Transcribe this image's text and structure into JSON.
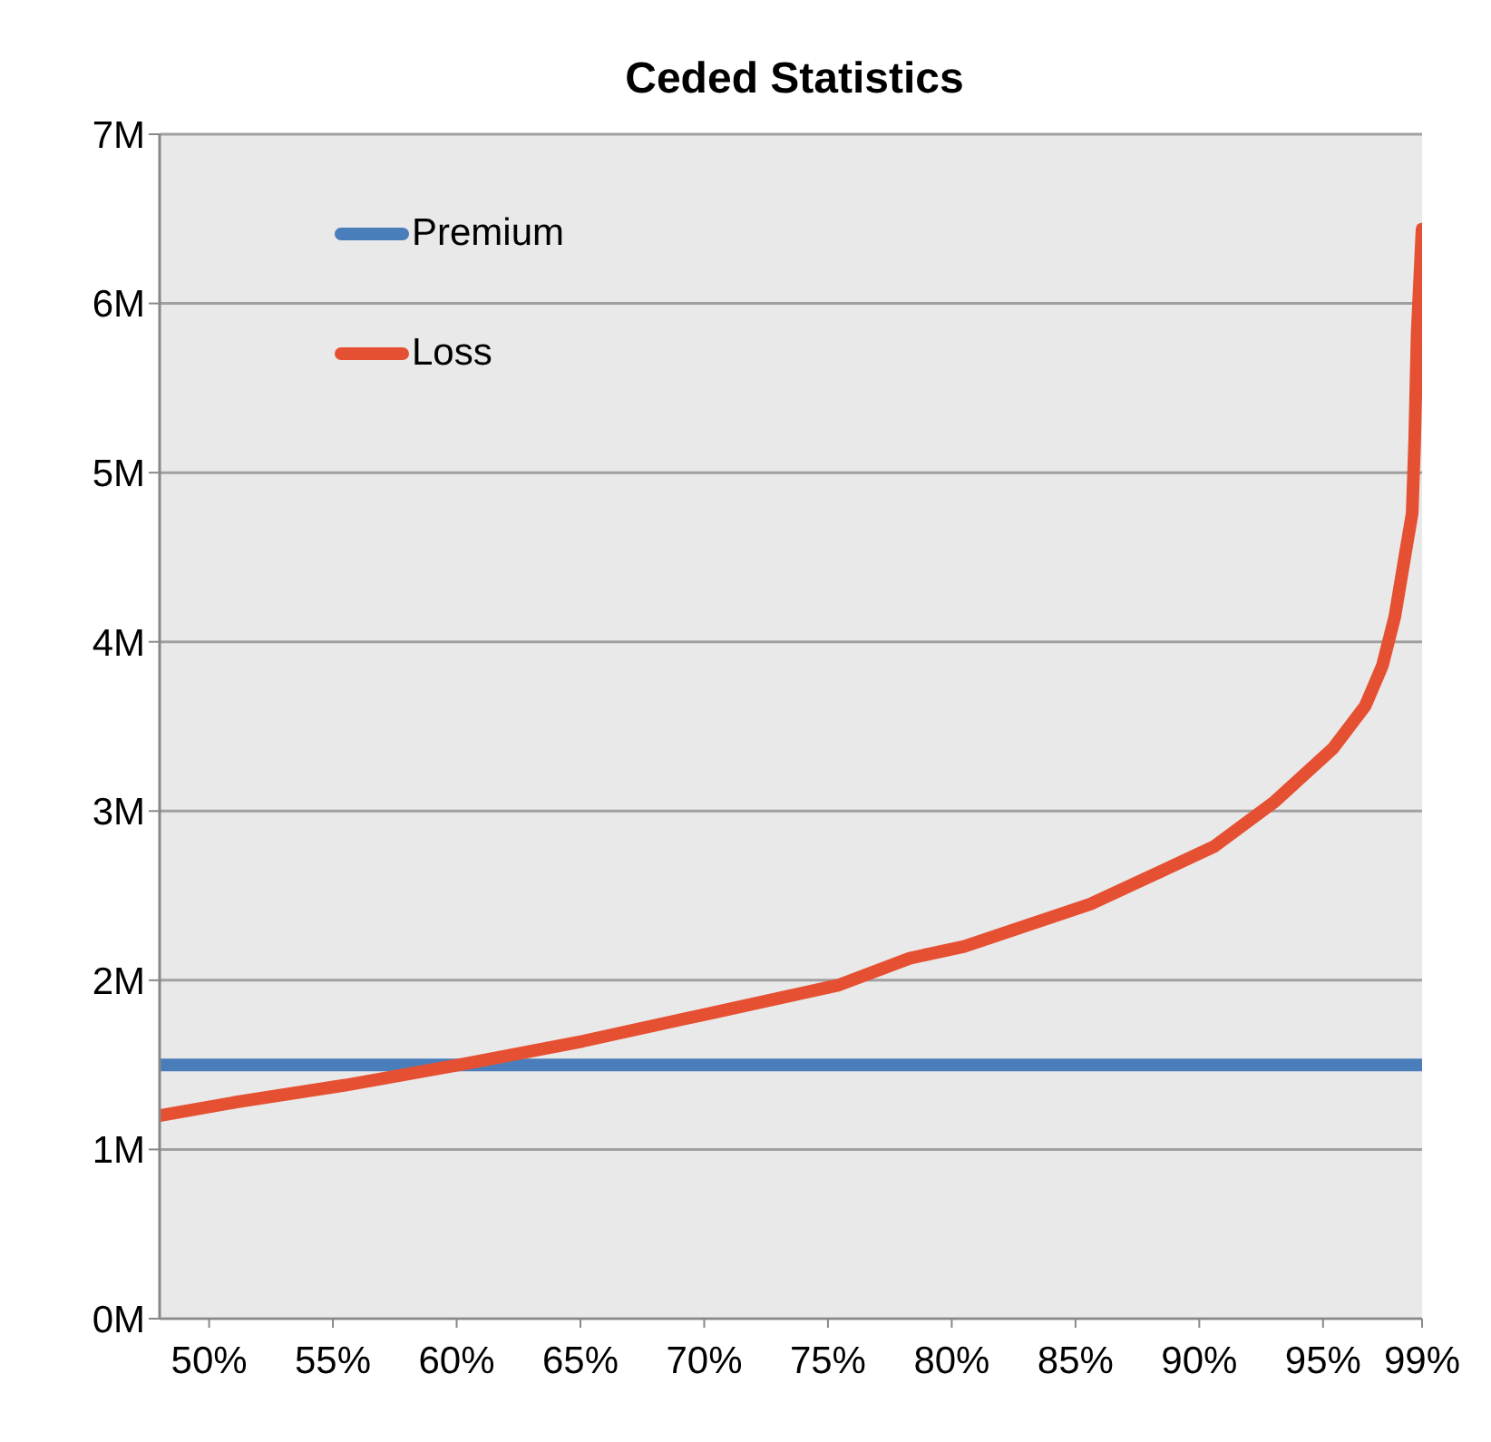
{
  "chart_data": {
    "type": "line",
    "title": "Ceded Statistics",
    "xlim": [
      48,
      99
    ],
    "xticks": [
      {
        "value": 50,
        "label": "50%"
      },
      {
        "value": 55,
        "label": "55%"
      },
      {
        "value": 60,
        "label": "60%"
      },
      {
        "value": 65,
        "label": "65%"
      },
      {
        "value": 70,
        "label": "70%"
      },
      {
        "value": 75,
        "label": "75%"
      },
      {
        "value": 80,
        "label": "80%"
      },
      {
        "value": 85,
        "label": "85%"
      },
      {
        "value": 90,
        "label": "90%"
      },
      {
        "value": 95,
        "label": "95%"
      },
      {
        "value": 99,
        "label": "99%"
      }
    ],
    "ylim": [
      0,
      7
    ],
    "yticks": [
      {
        "value": 0,
        "label": "0M"
      },
      {
        "value": 1,
        "label": "1M"
      },
      {
        "value": 2,
        "label": "2M"
      },
      {
        "value": 3,
        "label": "3M"
      },
      {
        "value": 4,
        "label": "4M"
      },
      {
        "value": 5,
        "label": "5M"
      },
      {
        "value": 6,
        "label": "6M"
      },
      {
        "value": 7,
        "label": "7M"
      }
    ],
    "grid": "y",
    "legend": "top left",
    "marker": "none",
    "line_style": "solid",
    "series": [
      {
        "name": "Premium",
        "color": "#4a7ebb",
        "x": [
          48,
          99
        ],
        "values": [
          1.5,
          1.5
        ]
      },
      {
        "name": "Loss",
        "color": "#e65032",
        "x": [
          48.0,
          51.1,
          55.5,
          60.1,
          65.1,
          70.4,
          75.4,
          78.3,
          80.5,
          85.6,
          90.6,
          93.0,
          95.4,
          96.7,
          97.4,
          97.9,
          98.3,
          98.6,
          98.7,
          98.8,
          99.0
        ],
        "values": [
          1.2,
          1.28,
          1.38,
          1.5,
          1.64,
          1.81,
          1.97,
          2.13,
          2.2,
          2.45,
          2.79,
          3.05,
          3.37,
          3.62,
          3.86,
          4.15,
          4.5,
          4.76,
          5.18,
          5.82,
          6.44
        ]
      }
    ]
  }
}
